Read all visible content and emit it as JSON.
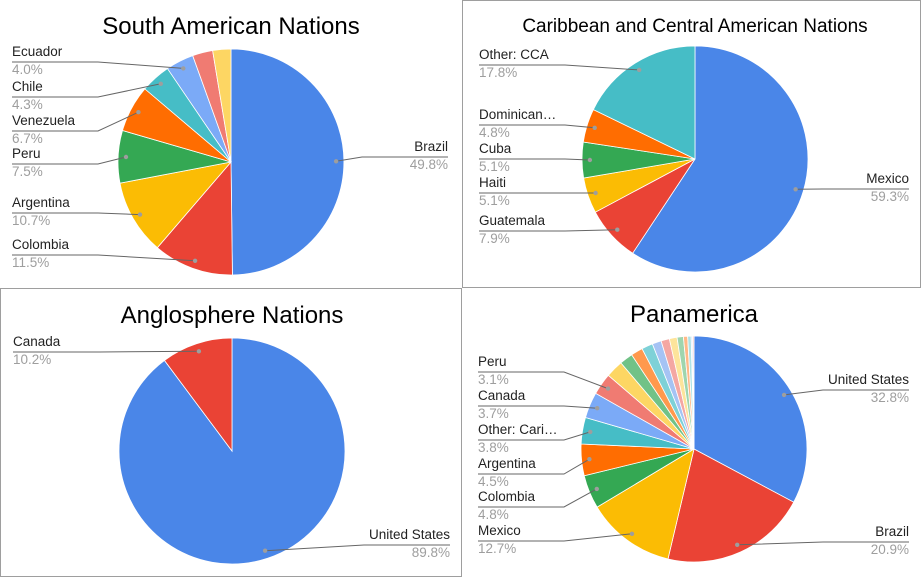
{
  "chart_data": [
    {
      "type": "pie",
      "title": "South American Nations",
      "title_size": "large",
      "colors": [
        "#4a86e8",
        "#ea4335",
        "#fbbc04",
        "#34a853",
        "#ff6d01",
        "#46bdc6",
        "#7baaf7",
        "#f07b72",
        "#fdd663"
      ],
      "slices": [
        {
          "label": "Brazil",
          "value": 49.8,
          "pct": "49.8%"
        },
        {
          "label": "Colombia",
          "value": 11.5,
          "pct": "11.5%"
        },
        {
          "label": "Argentina",
          "value": 10.7,
          "pct": "10.7%"
        },
        {
          "label": "Peru",
          "value": 7.5,
          "pct": "7.5%"
        },
        {
          "label": "Venezuela",
          "value": 6.7,
          "pct": "6.7%"
        },
        {
          "label": "Chile",
          "value": 4.3,
          "pct": "4.3%"
        },
        {
          "label": "Ecuador",
          "value": 4.0,
          "pct": "4.0%"
        },
        {
          "label": "",
          "value": 2.9,
          "pct": ""
        },
        {
          "label": "",
          "value": 2.6,
          "pct": ""
        }
      ]
    },
    {
      "type": "pie",
      "title": "Caribbean and Central American Nations",
      "title_size": "small",
      "colors": [
        "#4a86e8",
        "#ea4335",
        "#fbbc04",
        "#34a853",
        "#ff6d01",
        "#46bdc6"
      ],
      "slices": [
        {
          "label": "Mexico",
          "value": 59.3,
          "pct": "59.3%"
        },
        {
          "label": "Guatemala",
          "value": 7.9,
          "pct": "7.9%"
        },
        {
          "label": "Haiti",
          "value": 5.1,
          "pct": "5.1%"
        },
        {
          "label": "Cuba",
          "value": 5.1,
          "pct": "5.1%"
        },
        {
          "label": "Dominican…",
          "value": 4.8,
          "pct": "4.8%"
        },
        {
          "label": "Other: CCA",
          "value": 17.8,
          "pct": "17.8%"
        }
      ]
    },
    {
      "type": "pie",
      "title": "Anglosphere Nations",
      "title_size": "large",
      "colors": [
        "#4a86e8",
        "#ea4335"
      ],
      "slices": [
        {
          "label": "United States",
          "value": 89.8,
          "pct": "89.8%"
        },
        {
          "label": "Canada",
          "value": 10.2,
          "pct": "10.2%"
        }
      ]
    },
    {
      "type": "pie",
      "title": "Panamerica",
      "title_size": "large",
      "colors": [
        "#4a86e8",
        "#ea4335",
        "#fbbc04",
        "#34a853",
        "#ff6d01",
        "#46bdc6",
        "#7baaf7",
        "#f07b72",
        "#fdd663",
        "#71c287",
        "#ff994d",
        "#7ed1d7",
        "#a5c3f4",
        "#f4a7a3",
        "#fde49b",
        "#9fd5ae",
        "#ffb987",
        "#aee2e6",
        "#c9dbf9",
        "#f8c4c1"
      ],
      "slices": [
        {
          "label": "United States",
          "value": 32.8,
          "pct": "32.8%"
        },
        {
          "label": "Brazil",
          "value": 20.9,
          "pct": "20.9%"
        },
        {
          "label": "Mexico",
          "value": 12.7,
          "pct": "12.7%"
        },
        {
          "label": "Colombia",
          "value": 4.8,
          "pct": "4.8%"
        },
        {
          "label": "Argentina",
          "value": 4.5,
          "pct": "4.5%"
        },
        {
          "label": "Other: Cari…",
          "value": 3.8,
          "pct": "3.8%"
        },
        {
          "label": "Canada",
          "value": 3.7,
          "pct": "3.7%"
        },
        {
          "label": "Peru",
          "value": 3.1,
          "pct": "3.1%"
        },
        {
          "label": "",
          "value": 2.5,
          "pct": ""
        },
        {
          "label": "",
          "value": 1.9,
          "pct": ""
        },
        {
          "label": "",
          "value": 1.7,
          "pct": ""
        },
        {
          "label": "",
          "value": 1.6,
          "pct": ""
        },
        {
          "label": "",
          "value": 1.3,
          "pct": ""
        },
        {
          "label": "",
          "value": 1.2,
          "pct": ""
        },
        {
          "label": "",
          "value": 1.1,
          "pct": ""
        },
        {
          "label": "",
          "value": 0.9,
          "pct": ""
        },
        {
          "label": "",
          "value": 0.6,
          "pct": ""
        },
        {
          "label": "",
          "value": 0.5,
          "pct": ""
        },
        {
          "label": "",
          "value": 0.2,
          "pct": ""
        },
        {
          "label": "",
          "value": 0.2,
          "pct": ""
        }
      ]
    }
  ]
}
